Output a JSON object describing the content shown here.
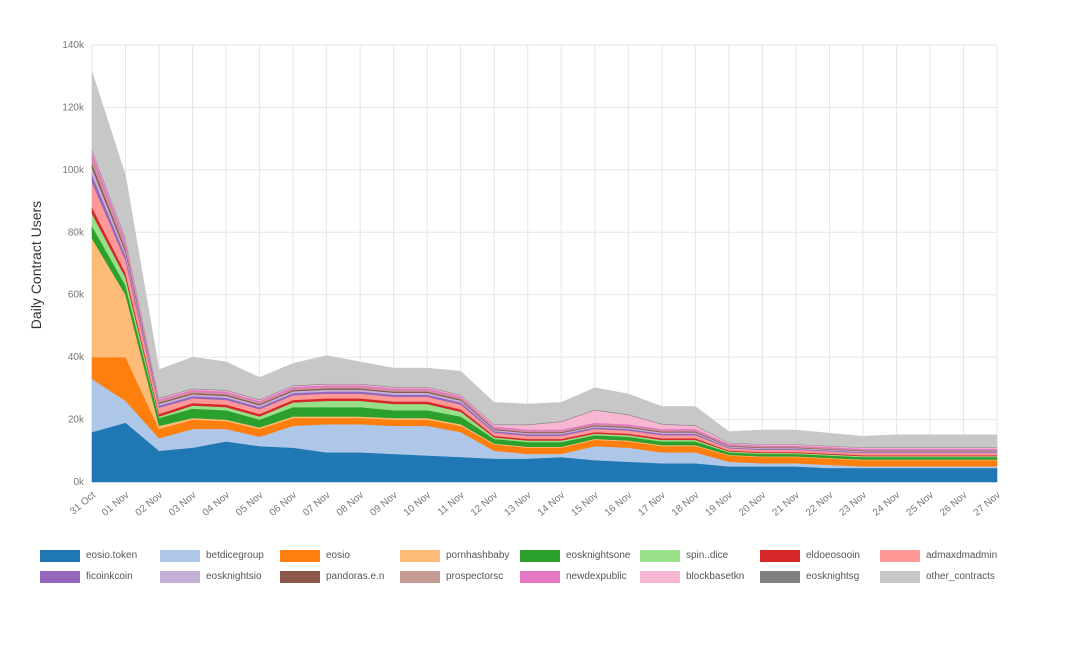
{
  "chart_data": {
    "type": "area",
    "stacked": true,
    "ylabel": "Daily Contract Users",
    "xlabel": "",
    "ylim": [
      0,
      140000
    ],
    "yticks": [
      "0k",
      "20k",
      "40k",
      "60k",
      "80k",
      "100k",
      "120k",
      "140k"
    ],
    "ytick_values": [
      0,
      20000,
      40000,
      60000,
      80000,
      100000,
      120000,
      140000
    ],
    "grid": true,
    "legend_position": "bottom",
    "categories": [
      "31 Oct",
      "01 Nov",
      "02 Nov",
      "03 Nov",
      "04 Nov",
      "05 Nov",
      "06 Nov",
      "07 Nov",
      "08 Nov",
      "09 Nov",
      "10 Nov",
      "11 Nov",
      "12 Nov",
      "13 Nov",
      "14 Nov",
      "15 Nov",
      "16 Nov",
      "17 Nov",
      "18 Nov",
      "19 Nov",
      "20 Nov",
      "21 Nov",
      "22 Nov",
      "23 Nov",
      "24 Nov",
      "25 Nov",
      "26 Nov",
      "27 Nov"
    ],
    "series": [
      {
        "name": "eosio.token",
        "color": "#1f77b4",
        "values": [
          16000,
          19000,
          10000,
          11000,
          13000,
          11500,
          11000,
          9500,
          9500,
          9000,
          8500,
          8000,
          7500,
          7500,
          8000,
          7000,
          6500,
          6000,
          6000,
          5000,
          5000,
          5000,
          4500,
          4500,
          4500,
          4500,
          4500,
          4500
        ]
      },
      {
        "name": "betdicegroup",
        "color": "#aec7e8",
        "values": [
          17000,
          7000,
          4000,
          6000,
          4000,
          3000,
          7000,
          9000,
          9000,
          9000,
          9500,
          8000,
          2500,
          1500,
          1000,
          4500,
          4500,
          3500,
          3500,
          1500,
          1000,
          1000,
          1000,
          500,
          500,
          500,
          500,
          500
        ]
      },
      {
        "name": "eosio",
        "color": "#ff7f0e",
        "values": [
          7000,
          14000,
          3000,
          3000,
          2500,
          2500,
          2500,
          2000,
          2000,
          2000,
          2000,
          2000,
          2000,
          2000,
          2000,
          2000,
          2000,
          2000,
          2000,
          2000,
          2000,
          2000,
          2000,
          2000,
          2000,
          2000,
          2000,
          2000
        ]
      },
      {
        "name": "pornhashbaby",
        "color": "#ffbb78",
        "values": [
          38000,
          20000,
          1000,
          500,
          500,
          500,
          500,
          500,
          500,
          500,
          500,
          500,
          300,
          300,
          300,
          300,
          300,
          300,
          300,
          200,
          200,
          200,
          200,
          200,
          200,
          200,
          200,
          200
        ]
      },
      {
        "name": "eosknightsone",
        "color": "#2ca02c",
        "values": [
          4000,
          3000,
          2500,
          3000,
          3000,
          2500,
          3000,
          3000,
          3000,
          2500,
          2500,
          2500,
          1500,
          1500,
          1500,
          1200,
          1200,
          1200,
          1200,
          800,
          800,
          800,
          800,
          800,
          800,
          800,
          800,
          800
        ]
      },
      {
        "name": "spin..dice",
        "color": "#98df8a",
        "values": [
          4000,
          2500,
          500,
          1000,
          1000,
          1000,
          1500,
          2000,
          2000,
          2000,
          2000,
          1500,
          500,
          500,
          500,
          500,
          500,
          500,
          500,
          300,
          300,
          300,
          300,
          300,
          300,
          300,
          300,
          300
        ]
      },
      {
        "name": "eldoeosooin",
        "color": "#d62728",
        "values": [
          2000,
          1500,
          800,
          800,
          800,
          800,
          800,
          800,
          800,
          800,
          800,
          800,
          500,
          500,
          500,
          500,
          500,
          500,
          500,
          300,
          300,
          300,
          300,
          300,
          300,
          300,
          300,
          300
        ]
      },
      {
        "name": "admaxdmadmin",
        "color": "#ff9896",
        "values": [
          8000,
          4000,
          2000,
          1500,
          1500,
          1500,
          1500,
          1500,
          1500,
          1500,
          1500,
          1500,
          1000,
          1000,
          1000,
          1000,
          1000,
          1000,
          1000,
          700,
          700,
          700,
          700,
          700,
          700,
          700,
          700,
          700
        ]
      },
      {
        "name": "ficoinkcoin",
        "color": "#9467bd",
        "values": [
          2500,
          1500,
          700,
          700,
          700,
          700,
          700,
          700,
          700,
          700,
          700,
          700,
          500,
          500,
          500,
          500,
          500,
          500,
          500,
          300,
          300,
          300,
          300,
          300,
          300,
          300,
          300,
          300
        ]
      },
      {
        "name": "eosknightsio",
        "color": "#c5b0d5",
        "values": [
          2000,
          1200,
          600,
          600,
          600,
          600,
          600,
          600,
          600,
          600,
          600,
          600,
          400,
          400,
          400,
          400,
          400,
          400,
          400,
          300,
          300,
          300,
          300,
          300,
          300,
          300,
          300,
          300
        ]
      },
      {
        "name": "pandoras.e.n",
        "color": "#8c564b",
        "values": [
          1500,
          1000,
          400,
          400,
          400,
          400,
          400,
          400,
          400,
          400,
          400,
          400,
          300,
          300,
          300,
          300,
          300,
          300,
          300,
          200,
          200,
          200,
          200,
          200,
          200,
          200,
          200,
          200
        ]
      },
      {
        "name": "prospectorsc",
        "color": "#c49c94",
        "values": [
          1500,
          1000,
          400,
          400,
          400,
          400,
          400,
          400,
          400,
          400,
          400,
          400,
          300,
          300,
          300,
          300,
          300,
          300,
          300,
          200,
          200,
          200,
          200,
          200,
          200,
          200,
          200,
          200
        ]
      },
      {
        "name": "newdexpublic",
        "color": "#e377c2",
        "values": [
          2000,
          1500,
          600,
          600,
          600,
          600,
          600,
          600,
          600,
          600,
          600,
          600,
          500,
          500,
          500,
          500,
          500,
          500,
          500,
          400,
          400,
          400,
          400,
          400,
          400,
          400,
          400,
          400
        ]
      },
      {
        "name": "blockbasetkn",
        "color": "#f7b6d2",
        "values": [
          500,
          500,
          300,
          300,
          300,
          300,
          300,
          300,
          300,
          300,
          300,
          300,
          500,
          1500,
          2500,
          4000,
          3000,
          1500,
          1000,
          300,
          300,
          300,
          300,
          300,
          300,
          300,
          300,
          300
        ]
      },
      {
        "name": "eosknightsg",
        "color": "#7f7f7f",
        "values": [
          500,
          500,
          200,
          200,
          200,
          200,
          200,
          200,
          200,
          200,
          200,
          200,
          200,
          200,
          200,
          200,
          200,
          200,
          200,
          150,
          150,
          150,
          150,
          150,
          150,
          150,
          150,
          150
        ]
      },
      {
        "name": "other_contracts",
        "color": "#c7c7c7",
        "values": [
          25000,
          20000,
          9000,
          10000,
          9000,
          7000,
          7000,
          9000,
          7000,
          6000,
          6000,
          7500,
          7000,
          6500,
          6000,
          7000,
          6500,
          5500,
          6000,
          3500,
          4500,
          4500,
          4000,
          3500,
          4000,
          4000,
          4000,
          4000
        ]
      }
    ]
  }
}
